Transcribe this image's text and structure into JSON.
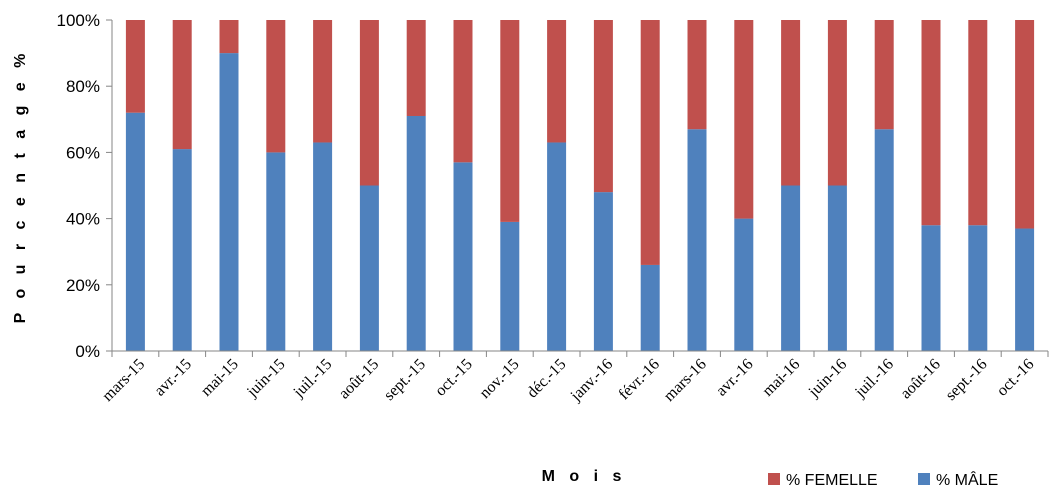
{
  "chart_data": {
    "type": "bar",
    "stacked": true,
    "percent_stacked": true,
    "categories": [
      "mars-15",
      "avr.-15",
      "mai-15",
      "juin-15",
      "juil.-15",
      "août-15",
      "sept.-15",
      "oct.-15",
      "nov.-15",
      "déc.-15",
      "janv.-16",
      "févr.-16",
      "mars-16",
      "avr.-16",
      "mai-16",
      "juin-16",
      "juil.-16",
      "août-16",
      "sept.-16",
      "oct.-16"
    ],
    "series": [
      {
        "name": "% MÂLE",
        "color": "#4F81BD",
        "values": [
          72,
          61,
          90,
          60,
          63,
          50,
          71,
          57,
          39,
          63,
          48,
          26,
          67,
          40,
          50,
          50,
          67,
          38,
          38,
          37
        ]
      },
      {
        "name": "% FEMELLE",
        "color": "#C0504D",
        "values": [
          28,
          39,
          10,
          40,
          37,
          50,
          29,
          43,
          61,
          37,
          52,
          74,
          33,
          60,
          50,
          50,
          33,
          62,
          62,
          63
        ]
      }
    ],
    "xlabel": "M o i s",
    "ylabel": "P o u r c e n t a g e %",
    "ylim": [
      0,
      100
    ],
    "yticks": [
      "0%",
      "20%",
      "40%",
      "60%",
      "80%",
      "100%"
    ],
    "grid": false,
    "legend": "bottom-right"
  }
}
